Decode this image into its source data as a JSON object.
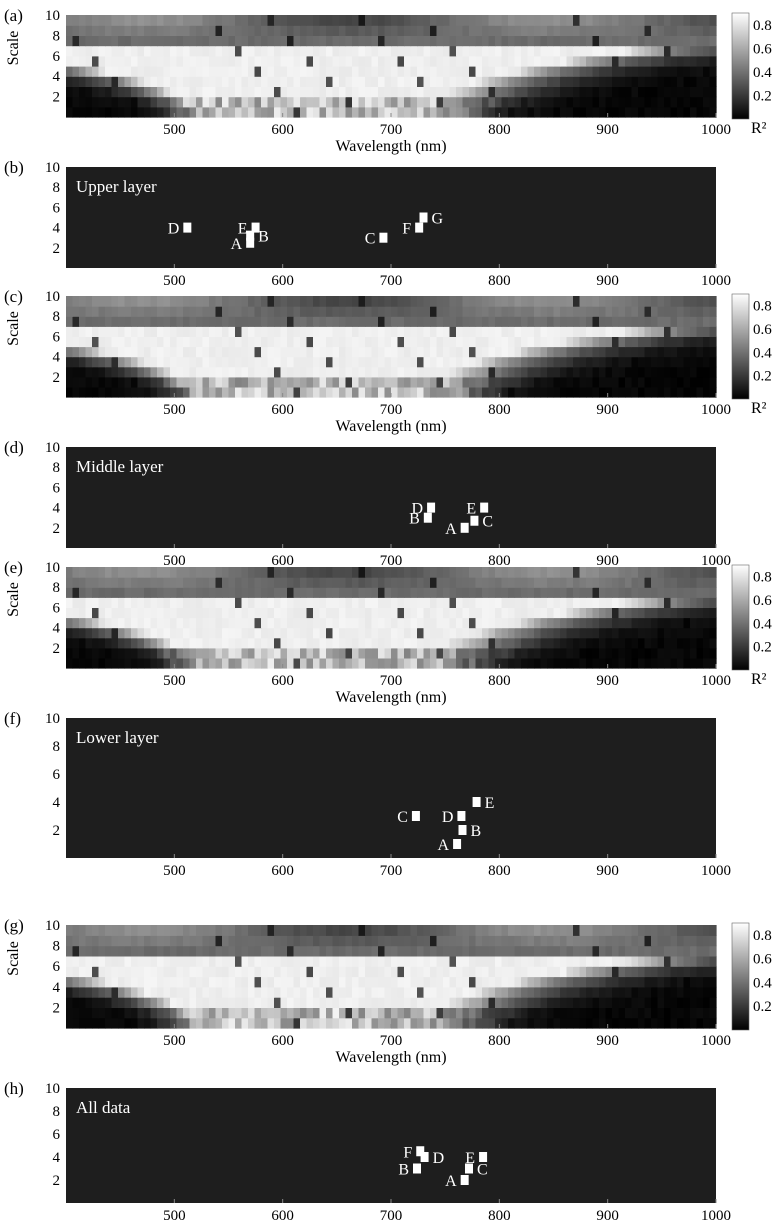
{
  "chart_data": [
    {
      "id": "a",
      "panel_label": "(a)",
      "type": "heatmap",
      "xlabel": "Wavelength (nm)",
      "ylabel": "Scale",
      "x_ticks": [
        "500",
        "600",
        "700",
        "800",
        "900",
        "1000"
      ],
      "y_ticks": [
        "2",
        "4",
        "6",
        "8",
        "10"
      ],
      "xlim": [
        400,
        1000
      ],
      "ylim": [
        0,
        10
      ],
      "colorbar": {
        "ticks": [
          "0.8",
          "0.6",
          "0.4",
          "0.2"
        ],
        "label": "R²",
        "range": [
          0,
          0.9
        ]
      },
      "grid": false
    },
    {
      "id": "b",
      "panel_label": "(b)",
      "type": "heatmap",
      "subtitle": "Upper layer",
      "x_ticks": [
        "500",
        "600",
        "700",
        "800",
        "900",
        "1000"
      ],
      "y_ticks": [
        "2",
        "4",
        "6",
        "8",
        "10"
      ],
      "xlim": [
        400,
        1000
      ],
      "ylim": [
        0,
        10
      ],
      "points": [
        {
          "label": "D",
          "x": 512,
          "y": 4,
          "label_side": "left"
        },
        {
          "label": "E",
          "x": 575,
          "y": 4,
          "label_side": "left"
        },
        {
          "label": "A",
          "x": 570,
          "y": 2.5,
          "label_side": "left"
        },
        {
          "label": "B",
          "x": 570,
          "y": 3.2,
          "label_side": "right"
        },
        {
          "label": "C",
          "x": 693,
          "y": 3,
          "label_side": "left"
        },
        {
          "label": "F",
          "x": 726,
          "y": 4,
          "label_side": "left"
        },
        {
          "label": "G",
          "x": 730,
          "y": 5,
          "label_side": "right"
        }
      ]
    },
    {
      "id": "c",
      "panel_label": "(c)",
      "type": "heatmap",
      "xlabel": "Wavelength (nm)",
      "ylabel": "Scale",
      "x_ticks": [
        "500",
        "600",
        "700",
        "800",
        "900",
        "1000"
      ],
      "y_ticks": [
        "2",
        "4",
        "6",
        "8",
        "10"
      ],
      "xlim": [
        400,
        1000
      ],
      "ylim": [
        0,
        10
      ],
      "colorbar": {
        "ticks": [
          "0.8",
          "0.6",
          "0.4",
          "0.2"
        ],
        "label": "R²",
        "range": [
          0,
          0.9
        ]
      },
      "grid": false
    },
    {
      "id": "d",
      "panel_label": "(d)",
      "type": "heatmap",
      "subtitle": "Middle layer",
      "x_ticks": [
        "500",
        "600",
        "700",
        "800",
        "900",
        "1000"
      ],
      "y_ticks": [
        "2",
        "4",
        "6",
        "8",
        "10"
      ],
      "xlim": [
        400,
        1000
      ],
      "ylim": [
        0,
        10
      ],
      "points": [
        {
          "label": "D",
          "x": 737,
          "y": 4,
          "label_side": "left"
        },
        {
          "label": "B",
          "x": 734,
          "y": 3,
          "label_side": "left"
        },
        {
          "label": "E",
          "x": 786,
          "y": 4,
          "label_side": "left"
        },
        {
          "label": "A",
          "x": 768,
          "y": 2,
          "label_side": "left"
        },
        {
          "label": "C",
          "x": 777,
          "y": 2.7,
          "label_side": "right"
        }
      ]
    },
    {
      "id": "e",
      "panel_label": "(e)",
      "type": "heatmap",
      "xlabel": "Wavelength (nm)",
      "ylabel": "Scale",
      "x_ticks": [
        "500",
        "600",
        "700",
        "800",
        "900",
        "1000"
      ],
      "y_ticks": [
        "2",
        "4",
        "6",
        "8",
        "10"
      ],
      "xlim": [
        400,
        1000
      ],
      "ylim": [
        0,
        10
      ],
      "colorbar": {
        "ticks": [
          "0.8",
          "0.6",
          "0.4",
          "0.2"
        ],
        "label": "R²",
        "range": [
          0,
          0.9
        ]
      },
      "grid": false
    },
    {
      "id": "f",
      "panel_label": "(f)",
      "type": "heatmap",
      "subtitle": "Lower layer",
      "x_ticks": [
        "500",
        "600",
        "700",
        "800",
        "900",
        "1000"
      ],
      "y_ticks": [
        "2",
        "4",
        "6",
        "8",
        "10"
      ],
      "xlim": [
        400,
        1000
      ],
      "ylim": [
        0,
        10
      ],
      "points": [
        {
          "label": "C",
          "x": 723,
          "y": 3,
          "label_side": "left"
        },
        {
          "label": "D",
          "x": 765,
          "y": 3,
          "label_side": "left"
        },
        {
          "label": "E",
          "x": 779,
          "y": 4,
          "label_side": "right"
        },
        {
          "label": "B",
          "x": 766,
          "y": 2,
          "label_side": "right"
        },
        {
          "label": "A",
          "x": 761,
          "y": 1,
          "label_side": "left"
        }
      ]
    },
    {
      "id": "g",
      "panel_label": "(g)",
      "type": "heatmap",
      "xlabel": "Wavelength (nm)",
      "ylabel": "Scale",
      "x_ticks": [
        "500",
        "600",
        "700",
        "800",
        "900",
        "1000"
      ],
      "y_ticks": [
        "2",
        "4",
        "6",
        "8",
        "10"
      ],
      "xlim": [
        400,
        1000
      ],
      "ylim": [
        0,
        10
      ],
      "colorbar": {
        "ticks": [
          "0.8",
          "0.6",
          "0.4",
          "0.2"
        ],
        "label": "",
        "range": [
          0,
          0.9
        ]
      },
      "grid": false
    },
    {
      "id": "h",
      "panel_label": "(h)",
      "type": "heatmap",
      "subtitle": "All data",
      "x_ticks": [
        "500",
        "600",
        "700",
        "800",
        "900",
        "1000"
      ],
      "y_ticks": [
        "2",
        "4",
        "6",
        "8",
        "10"
      ],
      "xlim": [
        400,
        1000
      ],
      "ylim": [
        0,
        10
      ],
      "points": [
        {
          "label": "F",
          "x": 727,
          "y": 4.5,
          "label_side": "left"
        },
        {
          "label": "D",
          "x": 731,
          "y": 4,
          "label_side": "right"
        },
        {
          "label": "B",
          "x": 724,
          "y": 3,
          "label_side": "left"
        },
        {
          "label": "E",
          "x": 785,
          "y": 4,
          "label_side": "left"
        },
        {
          "label": "A",
          "x": 768,
          "y": 2,
          "label_side": "left"
        },
        {
          "label": "C",
          "x": 772,
          "y": 3,
          "label_side": "right"
        }
      ]
    }
  ]
}
